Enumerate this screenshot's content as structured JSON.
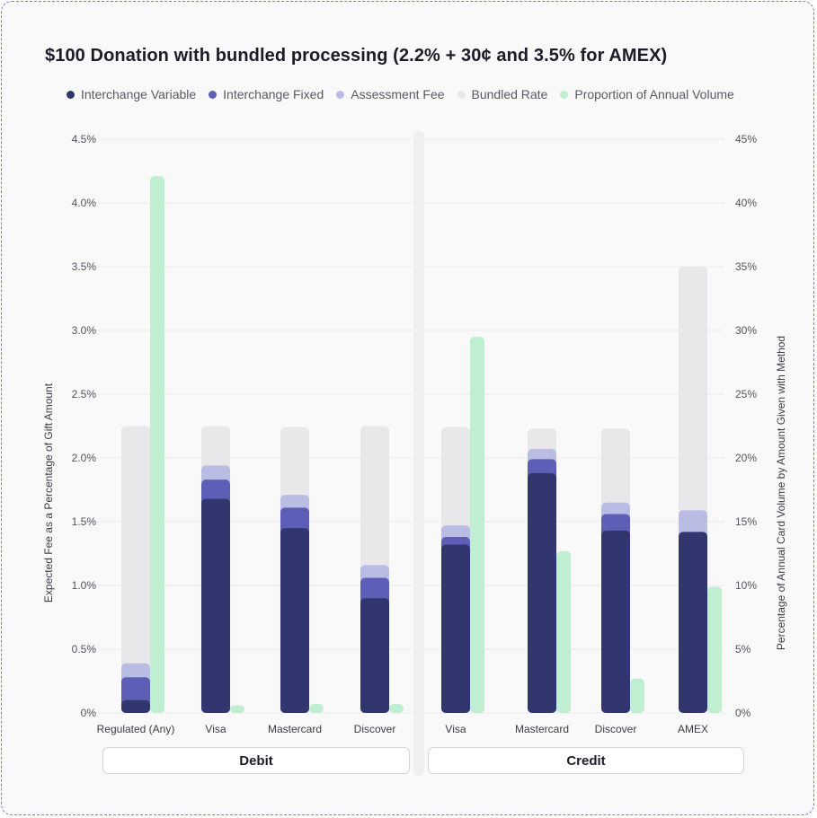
{
  "chart_data": {
    "type": "bar",
    "title": "$100 Donation with bundled processing (2.2% + 30¢ and 3.5% for AMEX)",
    "ylabel": "Expected Fee as a Percentage of Gift Amount",
    "y2label": "Percentage of Annual Card Volume by Amount Given with Method",
    "ylim": [
      0,
      4.5
    ],
    "y2lim": [
      0,
      45
    ],
    "yticks": [
      "0%",
      "0.5%",
      "1.0%",
      "1.5%",
      "2.0%",
      "2.5%",
      "3.0%",
      "3.5%",
      "4.0%",
      "4.5%"
    ],
    "y2ticks": [
      "0%",
      "5%",
      "10%",
      "15%",
      "20%",
      "25%",
      "30%",
      "35%",
      "40%",
      "45%"
    ],
    "grid": true,
    "legend_position": "top",
    "legend": [
      {
        "name": "Interchange Variable",
        "color": "#32366f"
      },
      {
        "name": "Interchange Fixed",
        "color": "#5c5fb5"
      },
      {
        "name": "Assessment Fee",
        "color": "#babde3"
      },
      {
        "name": "Bundled Rate",
        "color": "#e8e8ea"
      },
      {
        "name": "Proportion of Annual Volume",
        "color": "#bfefd0"
      }
    ],
    "groups": [
      {
        "name": "Debit",
        "categories": [
          "Regulated (Any)",
          "Visa",
          "Mastercard",
          "Discover"
        ]
      },
      {
        "name": "Credit",
        "categories": [
          "Visa",
          "Mastercard",
          "Discover",
          "AMEX"
        ]
      }
    ],
    "series": [
      {
        "name": "Interchange Variable",
        "axis": "left",
        "values": [
          0.1,
          1.68,
          1.45,
          0.9,
          1.32,
          1.88,
          1.43,
          1.42
        ]
      },
      {
        "name": "Interchange Fixed",
        "axis": "left",
        "values": [
          0.18,
          0.15,
          0.16,
          0.16,
          0.06,
          0.11,
          0.13,
          0.0
        ]
      },
      {
        "name": "Assessment Fee",
        "axis": "left",
        "values": [
          0.11,
          0.11,
          0.1,
          0.1,
          0.09,
          0.08,
          0.09,
          0.17
        ]
      },
      {
        "name": "Bundled Rate",
        "axis": "left",
        "values": [
          2.25,
          2.25,
          2.24,
          2.25,
          2.24,
          2.23,
          2.23,
          3.5
        ]
      },
      {
        "name": "Proportion of Annual Volume",
        "axis": "right",
        "values": [
          42.1,
          0.6,
          0.7,
          0.7,
          29.5,
          12.7,
          2.7,
          9.9
        ]
      }
    ]
  }
}
